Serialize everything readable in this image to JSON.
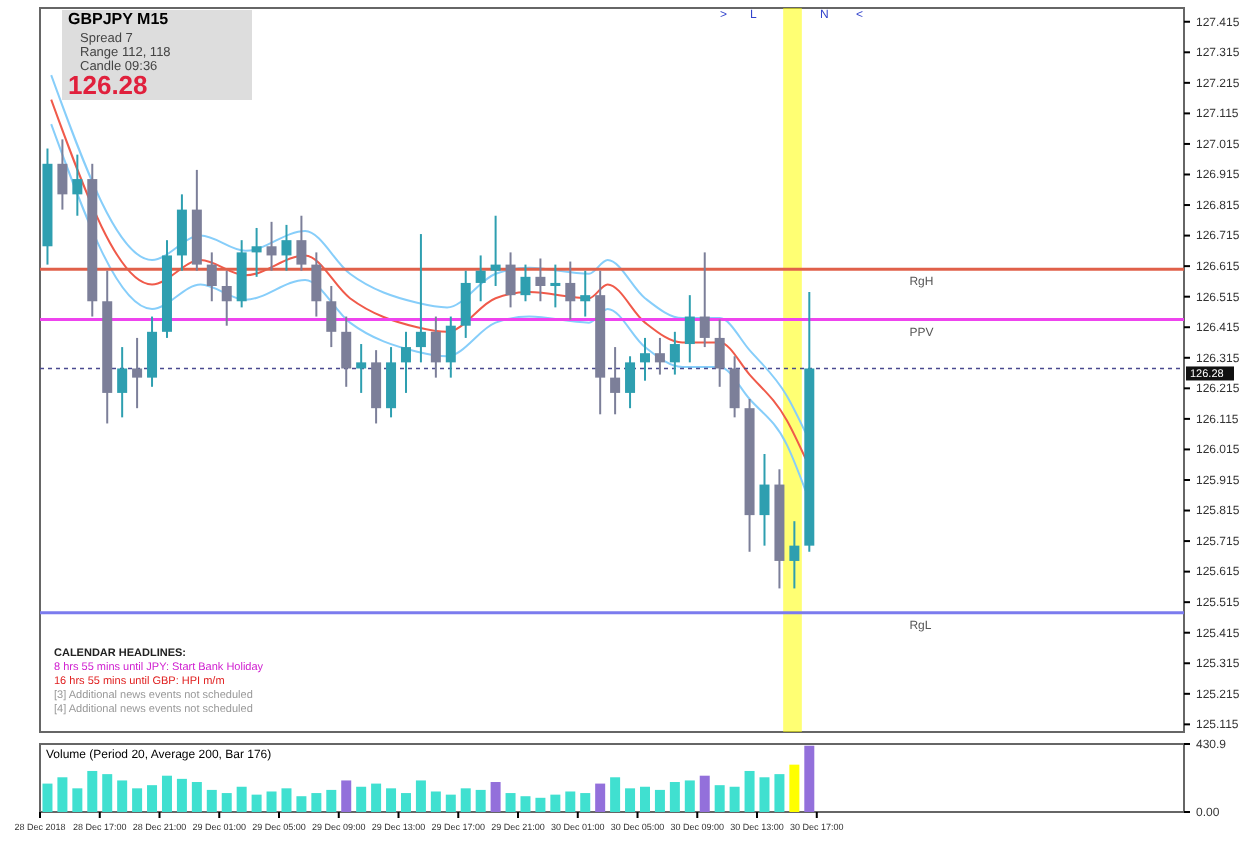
{
  "chart_data": [
    {
      "type": "candlestick",
      "title": "GBPJPY  M15",
      "x": [
        "2018-12-28T13:30",
        "2018-12-28T14:30",
        "2018-12-28T15:30",
        "2018-12-28T16:30",
        "2018-12-28T17:30",
        "2018-12-28T18:30",
        "2018-12-28T19:30",
        "2018-12-28T20:30",
        "2018-12-28T21:30",
        "2018-12-28T22:30",
        "2018-12-28T23:30",
        "2018-12-29T00:30",
        "2018-12-29T01:30",
        "2018-12-29T02:30",
        "2018-12-29T03:30",
        "2018-12-29T04:30",
        "2018-12-29T05:30",
        "2018-12-29T06:30",
        "2018-12-29T07:30",
        "2018-12-29T08:30",
        "2018-12-29T09:30",
        "2018-12-29T10:30",
        "2018-12-29T11:30",
        "2018-12-29T12:30",
        "2018-12-29T13:30",
        "2018-12-29T14:30",
        "2018-12-29T15:30",
        "2018-12-29T16:30",
        "2018-12-29T17:30",
        "2018-12-29T18:30",
        "2018-12-29T19:30",
        "2018-12-29T20:30",
        "2018-12-29T21:30",
        "2018-12-29T22:30",
        "2018-12-29T23:30",
        "2018-12-30T00:30",
        "2018-12-30T01:30",
        "2018-12-30T02:30",
        "2018-12-30T03:30",
        "2018-12-30T04:30",
        "2018-12-30T05:30",
        "2018-12-30T06:30",
        "2018-12-30T07:30",
        "2018-12-30T08:30",
        "2018-12-30T09:30",
        "2018-12-30T10:30",
        "2018-12-30T11:30",
        "2018-12-30T12:30",
        "2018-12-30T13:30",
        "2018-12-30T14:30",
        "2018-12-30T15:30",
        "2018-12-30T16:30"
      ],
      "ohlc": [
        [
          126.68,
          127.0,
          126.62,
          126.95
        ],
        [
          126.95,
          127.03,
          126.8,
          126.85
        ],
        [
          126.85,
          126.98,
          126.78,
          126.9
        ],
        [
          126.9,
          126.95,
          126.45,
          126.5
        ],
        [
          126.5,
          126.6,
          126.1,
          126.2
        ],
        [
          126.2,
          126.35,
          126.12,
          126.28
        ],
        [
          126.28,
          126.38,
          126.15,
          126.25
        ],
        [
          126.25,
          126.45,
          126.22,
          126.4
        ],
        [
          126.4,
          126.7,
          126.38,
          126.65
        ],
        [
          126.65,
          126.85,
          126.6,
          126.8
        ],
        [
          126.8,
          126.93,
          126.6,
          126.62
        ],
        [
          126.62,
          126.66,
          126.5,
          126.55
        ],
        [
          126.55,
          126.6,
          126.42,
          126.5
        ],
        [
          126.5,
          126.7,
          126.48,
          126.66
        ],
        [
          126.66,
          126.74,
          126.58,
          126.68
        ],
        [
          126.68,
          126.76,
          126.6,
          126.65
        ],
        [
          126.65,
          126.75,
          126.6,
          126.7
        ],
        [
          126.7,
          126.78,
          126.6,
          126.62
        ],
        [
          126.62,
          126.66,
          126.45,
          126.5
        ],
        [
          126.5,
          126.55,
          126.35,
          126.4
        ],
        [
          126.4,
          126.45,
          126.22,
          126.28
        ],
        [
          126.28,
          126.36,
          126.2,
          126.3
        ],
        [
          126.3,
          126.34,
          126.1,
          126.15
        ],
        [
          126.15,
          126.35,
          126.12,
          126.3
        ],
        [
          126.3,
          126.4,
          126.2,
          126.35
        ],
        [
          126.35,
          126.72,
          126.3,
          126.4
        ],
        [
          126.4,
          126.45,
          126.25,
          126.3
        ],
        [
          126.3,
          126.45,
          126.25,
          126.42
        ],
        [
          126.42,
          126.6,
          126.38,
          126.56
        ],
        [
          126.56,
          126.65,
          126.5,
          126.6
        ],
        [
          126.6,
          126.78,
          126.55,
          126.62
        ],
        [
          126.62,
          126.66,
          126.48,
          126.52
        ],
        [
          126.52,
          126.62,
          126.5,
          126.58
        ],
        [
          126.58,
          126.64,
          126.5,
          126.55
        ],
        [
          126.55,
          126.62,
          126.48,
          126.56
        ],
        [
          126.56,
          126.63,
          126.44,
          126.5
        ],
        [
          126.5,
          126.6,
          126.45,
          126.52
        ],
        [
          126.52,
          126.6,
          126.13,
          126.25
        ],
        [
          126.25,
          126.35,
          126.13,
          126.2
        ],
        [
          126.2,
          126.32,
          126.15,
          126.3
        ],
        [
          126.3,
          126.38,
          126.24,
          126.33
        ],
        [
          126.33,
          126.38,
          126.26,
          126.3
        ],
        [
          126.3,
          126.4,
          126.26,
          126.36
        ],
        [
          126.36,
          126.52,
          126.3,
          126.45
        ],
        [
          126.45,
          126.66,
          126.35,
          126.38
        ],
        [
          126.38,
          126.44,
          126.22,
          126.28
        ],
        [
          126.28,
          126.32,
          126.12,
          126.15
        ],
        [
          126.15,
          126.18,
          125.68,
          125.8
        ],
        [
          125.8,
          126.0,
          125.7,
          125.9
        ],
        [
          125.9,
          125.95,
          125.56,
          125.65
        ],
        [
          125.65,
          125.78,
          125.56,
          125.7
        ],
        [
          125.7,
          126.53,
          125.68,
          126.28
        ]
      ],
      "colors": [
        "#2e9fb0",
        "#7c7f99",
        "#2e9fb0",
        "#7c7f99",
        "#7c7f99",
        "#2e9fb0",
        "#7c7f99",
        "#2e9fb0",
        "#2e9fb0",
        "#2e9fb0",
        "#7c7f99",
        "#7c7f99",
        "#7c7f99",
        "#2e9fb0",
        "#2e9fb0",
        "#7c7f99",
        "#2e9fb0",
        "#7c7f99",
        "#7c7f99",
        "#7c7f99",
        "#7c7f99",
        "#2e9fb0",
        "#7c7f99",
        "#2e9fb0",
        "#2e9fb0",
        "#2e9fb0",
        "#7c7f99",
        "#2e9fb0",
        "#2e9fb0",
        "#2e9fb0",
        "#2e9fb0",
        "#7c7f99",
        "#2e9fb0",
        "#7c7f99",
        "#2e9fb0",
        "#7c7f99",
        "#2e9fb0",
        "#7c7f99",
        "#7c7f99",
        "#2e9fb0",
        "#2e9fb0",
        "#7c7f99",
        "#2e9fb0",
        "#2e9fb0",
        "#7c7f99",
        "#7c7f99",
        "#7c7f99",
        "#7c7f99",
        "#2e9fb0",
        "#7c7f99",
        "#2e9fb0",
        "#2e9fb0"
      ],
      "series": [
        {
          "type": "line",
          "color": "#87cefa",
          "x": [
            "2018-12-28T13:45",
            "2018-12-28T20:30",
            "2018-12-28T23:45",
            "2018-12-29T02:45",
            "2018-12-29T06:45",
            "2018-12-29T09:45",
            "2018-12-29T14:15",
            "2018-12-29T16:15",
            "2018-12-29T19:30",
            "2018-12-29T21:45",
            "2018-12-30T01:45",
            "2018-12-30T03:00",
            "2018-12-30T05:30",
            "2018-12-30T08:00",
            "2018-12-30T10:30",
            "2018-12-30T12:30",
            "2018-12-30T15:00",
            "2018-12-30T16:15"
          ],
          "values": [
            127.24,
            126.635,
            126.715,
            126.665,
            126.73,
            126.59,
            126.495,
            126.48,
            126.59,
            126.61,
            126.59,
            126.635,
            126.51,
            126.445,
            126.445,
            126.34,
            126.19,
            126.07
          ]
        },
        {
          "type": "line",
          "color": "#f05a4a",
          "x": [
            "2018-12-28T13:45",
            "2018-12-28T20:30",
            "2018-12-28T23:45",
            "2018-12-29T02:45",
            "2018-12-29T06:45",
            "2018-12-29T09:45",
            "2018-12-29T14:15",
            "2018-12-29T16:15",
            "2018-12-29T19:30",
            "2018-12-29T21:45",
            "2018-12-30T01:45",
            "2018-12-30T03:00",
            "2018-12-30T05:30",
            "2018-12-30T08:00",
            "2018-12-30T10:30",
            "2018-12-30T12:30",
            "2018-12-30T15:00",
            "2018-12-30T16:15"
          ],
          "values": [
            127.16,
            126.555,
            126.635,
            126.585,
            126.65,
            126.51,
            126.415,
            126.4,
            126.51,
            126.53,
            126.51,
            126.555,
            126.43,
            126.365,
            126.365,
            126.26,
            126.11,
            125.985
          ]
        },
        {
          "type": "line",
          "color": "#87cefa",
          "x": [
            "2018-12-28T13:45",
            "2018-12-28T20:30",
            "2018-12-28T23:45",
            "2018-12-29T02:45",
            "2018-12-29T06:45",
            "2018-12-29T09:45",
            "2018-12-29T14:15",
            "2018-12-29T16:15",
            "2018-12-29T19:30",
            "2018-12-29T21:45",
            "2018-12-30T01:45",
            "2018-12-30T03:00",
            "2018-12-30T05:30",
            "2018-12-30T08:00",
            "2018-12-30T10:30",
            "2018-12-30T12:30",
            "2018-12-30T15:00",
            "2018-12-30T16:15"
          ],
          "values": [
            127.08,
            126.475,
            126.555,
            126.505,
            126.57,
            126.43,
            126.335,
            126.32,
            126.43,
            126.45,
            126.43,
            126.475,
            126.35,
            126.285,
            126.285,
            126.18,
            126.03,
            125.88
          ]
        }
      ],
      "xlim": [
        "2018-12-28T13:00",
        "2018-12-31T17:35"
      ],
      "ylim": [
        125.09,
        127.46
      ],
      "yticks": [
        125.115,
        125.215,
        125.315,
        125.415,
        125.515,
        125.615,
        125.715,
        125.815,
        125.915,
        126.015,
        126.115,
        126.215,
        126.315,
        126.415,
        126.515,
        126.615,
        126.715,
        126.815,
        126.915,
        127.015,
        127.115,
        127.215,
        127.315,
        127.415
      ],
      "tick_labels": "y",
      "ref_lines": [
        {
          "axis": "y",
          "value": 126.605,
          "label": "RgH",
          "color": "#e0604a"
        },
        {
          "axis": "y",
          "value": 126.44,
          "label": "PPV",
          "color": "#ee44ee"
        },
        {
          "axis": "y",
          "value": 125.48,
          "label": "RgL",
          "color": "#7b7bee"
        },
        {
          "axis": "y",
          "value": 126.28,
          "label": "126.28",
          "color": "#4a4a90",
          "line_style": "dashed"
        }
      ],
      "bands": [
        {
          "axis": "x",
          "from": "2018-12-30T14:45",
          "to": "2018-12-30T16:00",
          "color": "#ffff00"
        }
      ],
      "annotations": [
        "Spread  7",
        "Range  112, 118",
        "Candle  09:36",
        "126.28",
        "CALENDAR  HEADLINES:",
        "8 hrs 55 mins until JPY: Start Bank Holiday",
        "16 hrs 55 mins until GBP: HPI m/m",
        "[3]  Additional news events not scheduled",
        "[4]  Additional news events not scheduled",
        ">",
        "L",
        "N",
        "<"
      ]
    },
    {
      "type": "bar",
      "title": "Volume  (Period 20, Average 200, Bar 176)",
      "x": [
        "2018-12-28T13:30",
        "2018-12-28T14:30",
        "2018-12-28T15:30",
        "2018-12-28T16:30",
        "2018-12-28T17:30",
        "2018-12-28T18:30",
        "2018-12-28T19:30",
        "2018-12-28T20:30",
        "2018-12-28T21:30",
        "2018-12-28T22:30",
        "2018-12-28T23:30",
        "2018-12-29T00:30",
        "2018-12-29T01:30",
        "2018-12-29T02:30",
        "2018-12-29T03:30",
        "2018-12-29T04:30",
        "2018-12-29T05:30",
        "2018-12-29T06:30",
        "2018-12-29T07:30",
        "2018-12-29T08:30",
        "2018-12-29T09:30",
        "2018-12-29T10:30",
        "2018-12-29T11:30",
        "2018-12-29T12:30",
        "2018-12-29T13:30",
        "2018-12-29T14:30",
        "2018-12-29T15:30",
        "2018-12-29T16:30",
        "2018-12-29T17:30",
        "2018-12-29T18:30",
        "2018-12-29T19:30",
        "2018-12-29T20:30",
        "2018-12-29T21:30",
        "2018-12-29T22:30",
        "2018-12-29T23:30",
        "2018-12-30T00:30",
        "2018-12-30T01:30",
        "2018-12-30T02:30",
        "2018-12-30T03:30",
        "2018-12-30T04:30",
        "2018-12-30T05:30",
        "2018-12-30T06:30",
        "2018-12-30T07:30",
        "2018-12-30T08:30",
        "2018-12-30T09:30",
        "2018-12-30T10:30",
        "2018-12-30T11:30",
        "2018-12-30T12:30",
        "2018-12-30T13:30",
        "2018-12-30T14:30",
        "2018-12-30T15:30",
        "2018-12-30T16:30"
      ],
      "values": [
        180,
        220,
        150,
        260,
        240,
        200,
        150,
        170,
        230,
        210,
        190,
        140,
        120,
        160,
        110,
        130,
        150,
        100,
        120,
        140,
        200,
        160,
        180,
        150,
        120,
        200,
        130,
        110,
        150,
        140,
        190,
        120,
        100,
        90,
        110,
        130,
        120,
        180,
        220,
        150,
        160,
        140,
        190,
        200,
        230,
        170,
        160,
        260,
        220,
        240,
        300,
        420
      ],
      "colors": [
        "#40e0d0",
        "#40e0d0",
        "#40e0d0",
        "#40e0d0",
        "#40e0d0",
        "#40e0d0",
        "#40e0d0",
        "#40e0d0",
        "#40e0d0",
        "#40e0d0",
        "#40e0d0",
        "#40e0d0",
        "#40e0d0",
        "#40e0d0",
        "#40e0d0",
        "#40e0d0",
        "#40e0d0",
        "#40e0d0",
        "#40e0d0",
        "#40e0d0",
        "#9370db",
        "#40e0d0",
        "#40e0d0",
        "#40e0d0",
        "#40e0d0",
        "#40e0d0",
        "#40e0d0",
        "#40e0d0",
        "#40e0d0",
        "#40e0d0",
        "#9370db",
        "#40e0d0",
        "#40e0d0",
        "#40e0d0",
        "#40e0d0",
        "#40e0d0",
        "#40e0d0",
        "#9370db",
        "#40e0d0",
        "#40e0d0",
        "#40e0d0",
        "#40e0d0",
        "#40e0d0",
        "#40e0d0",
        "#9370db",
        "#40e0d0",
        "#40e0d0",
        "#40e0d0",
        "#40e0d0",
        "#40e0d0",
        "#ffff00",
        "#9370db"
      ],
      "xlim": [
        "2018-12-28T13:00",
        "2018-12-31T17:35"
      ],
      "xticks": [
        {
          "value": "2018-12-28T13:00",
          "label": "28 Dec 2018"
        },
        {
          "value": "2018-12-28T17:00",
          "label": "28 Dec 17:00"
        },
        {
          "value": "2018-12-28T21:00",
          "label": "28 Dec 21:00"
        },
        {
          "value": "2018-12-29T01:00",
          "label": "29 Dec 01:00"
        },
        {
          "value": "2018-12-29T05:00",
          "label": "29 Dec 05:00"
        },
        {
          "value": "2018-12-29T09:00",
          "label": "29 Dec 09:00"
        },
        {
          "value": "2018-12-29T13:00",
          "label": "29 Dec 13:00"
        },
        {
          "value": "2018-12-29T17:00",
          "label": "29 Dec 17:00"
        },
        {
          "value": "2018-12-29T21:00",
          "label": "29 Dec 21:00"
        },
        {
          "value": "2018-12-30T01:00",
          "label": "30 Dec 01:00"
        },
        {
          "value": "2018-12-30T05:00",
          "label": "30 Dec 05:00"
        },
        {
          "value": "2018-12-30T09:00",
          "label": "30 Dec 09:00"
        },
        {
          "value": "2018-12-30T13:00",
          "label": "30 Dec 13:00"
        },
        {
          "value": "2018-12-30T17:00",
          "label": "30 Dec 17:00"
        }
      ],
      "ylim": [
        0,
        430.9
      ],
      "yticks": [
        {
          "value": 0,
          "label": "0.00"
        },
        430.9
      ]
    }
  ]
}
